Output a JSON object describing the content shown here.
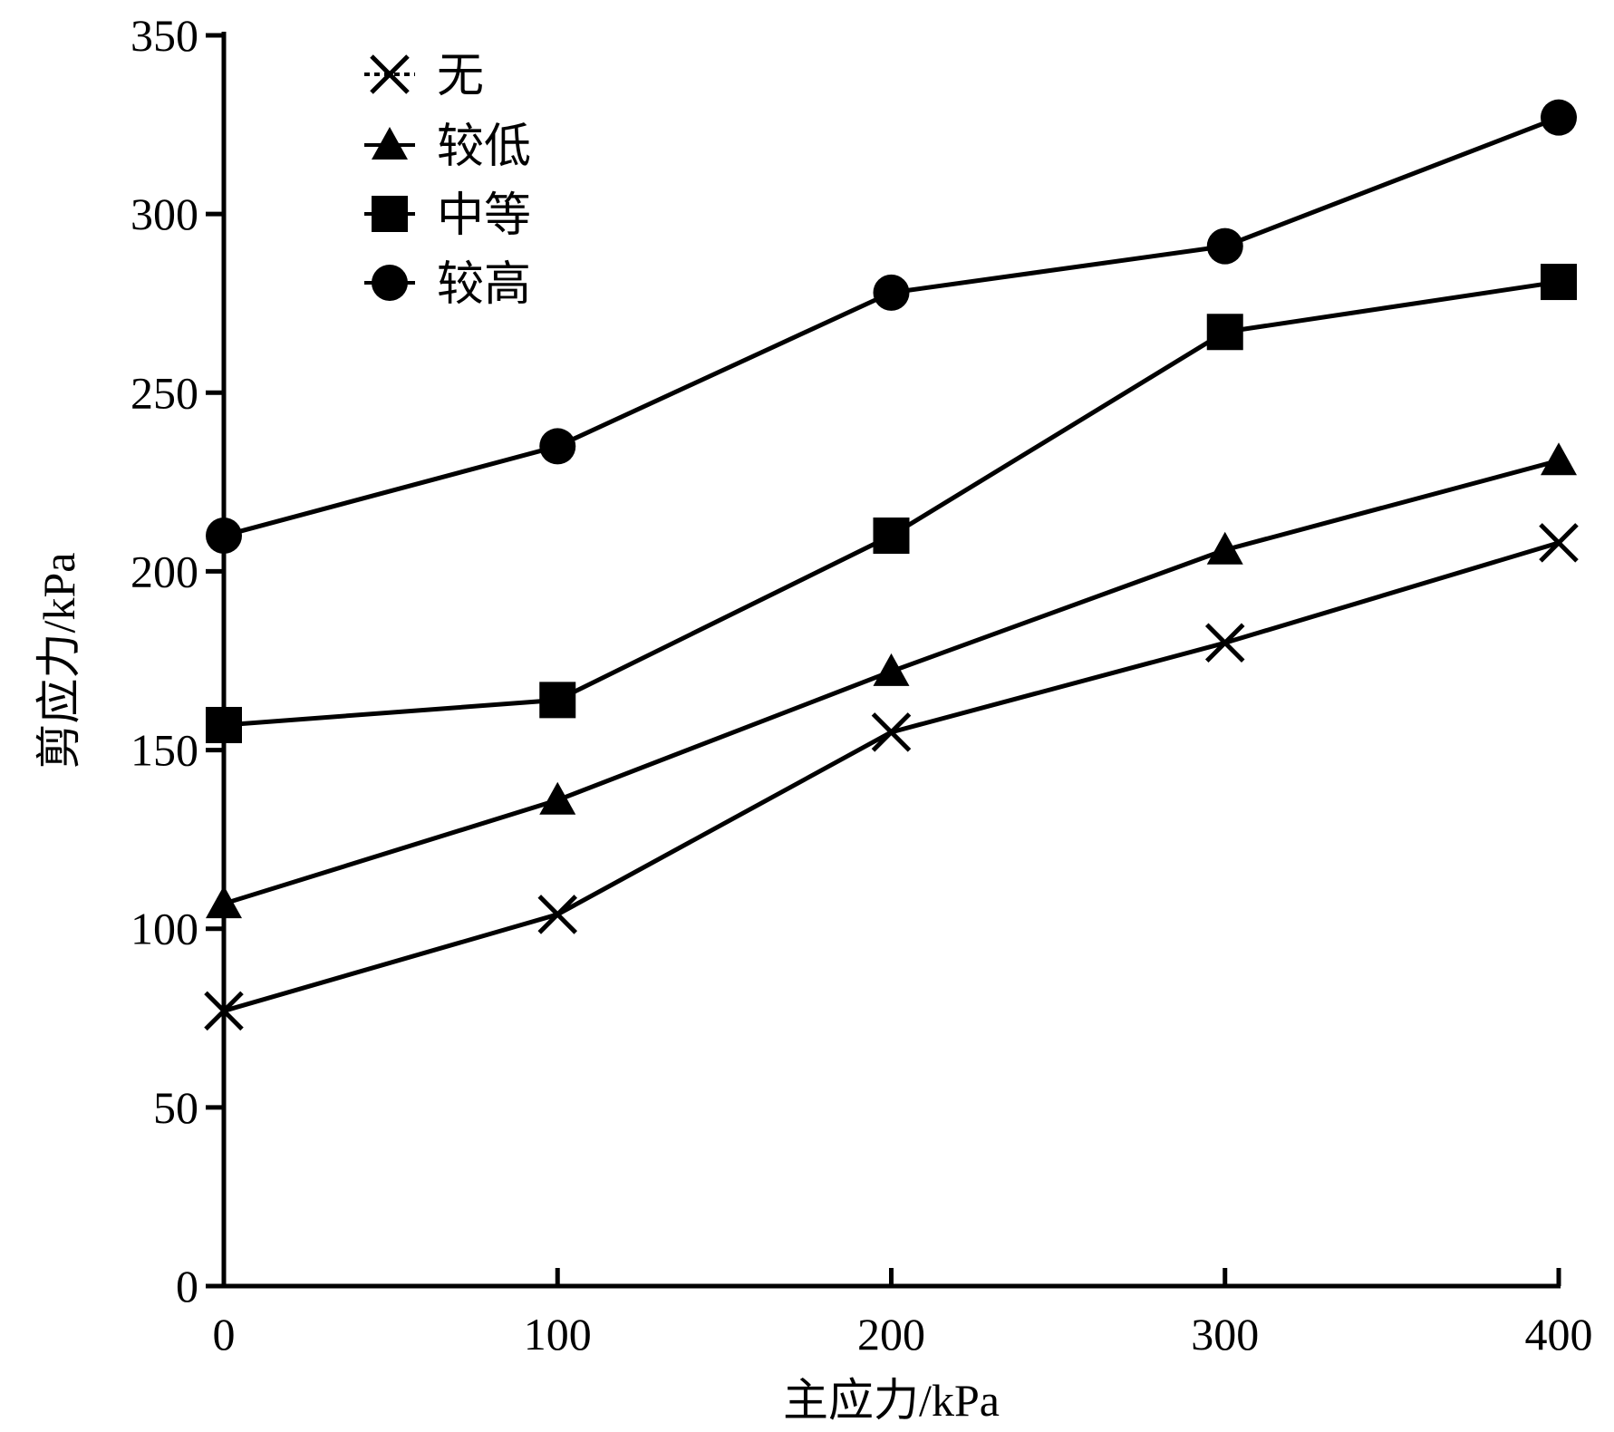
{
  "chart_data": {
    "type": "line",
    "title": "",
    "xlabel": "主应力/kPa",
    "ylabel": "剪应力/kPa",
    "x": [
      0,
      100,
      200,
      300,
      400
    ],
    "x_ticks": [
      "0",
      "100",
      "200",
      "300",
      "400"
    ],
    "y_ticks": [
      "0",
      "50",
      "100",
      "150",
      "200",
      "250",
      "300",
      "350"
    ],
    "xlim": [
      0,
      400
    ],
    "ylim": [
      0,
      350
    ],
    "grid": false,
    "legend_position": "top-left",
    "series": [
      {
        "name": "无",
        "marker": "x",
        "values": [
          77,
          104,
          155,
          180,
          208
        ]
      },
      {
        "name": "较低",
        "marker": "triangle",
        "values": [
          107,
          136,
          172,
          206,
          231
        ]
      },
      {
        "name": "中等",
        "marker": "square",
        "values": [
          157,
          164,
          210,
          267,
          281
        ]
      },
      {
        "name": "较高",
        "marker": "circle",
        "values": [
          210,
          235,
          278,
          291,
          327
        ]
      }
    ],
    "colors": {
      "line": "#000000",
      "marker": "#000000"
    }
  }
}
